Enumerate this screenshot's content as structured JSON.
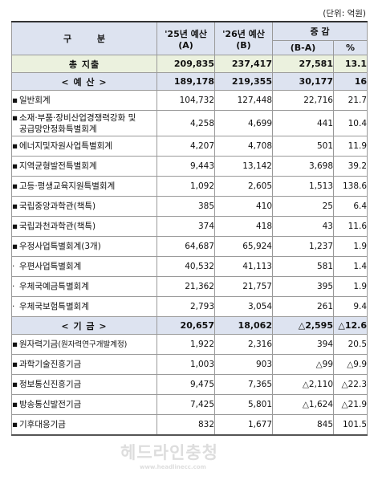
{
  "unit": "(단위: 억원)",
  "header": {
    "category": "구 분",
    "col_a_line1": "'25년 예산",
    "col_a_line2": "(A)",
    "col_b_line1": "'26년 예산",
    "col_b_line2": "(B)",
    "change": "증 감",
    "diff": "(B-A)",
    "pct": "%"
  },
  "total": {
    "label": "총 지출",
    "a": "209,835",
    "b": "237,417",
    "diff": "27,581",
    "pct": "13.1"
  },
  "budget_section": {
    "label": "< 예 산 >",
    "a": "189,178",
    "b": "219,355",
    "diff": "30,177",
    "pct": "16"
  },
  "budget_rows": [
    {
      "bullet": "▪",
      "label": "일반회계",
      "a": "104,732",
      "b": "127,448",
      "diff": "22,716",
      "pct": "21.7"
    },
    {
      "bullet": "▪",
      "label": "소재·부품·장비산업경쟁력강화 및",
      "label2": "공급망안정화특별회계",
      "a": "4,258",
      "b": "4,699",
      "diff": "441",
      "pct": "10.4"
    },
    {
      "bullet": "▪",
      "label": "에너지및자원사업특별회계",
      "a": "4,207",
      "b": "4,708",
      "diff": "501",
      "pct": "11.9"
    },
    {
      "bullet": "▪",
      "label": "지역균형발전특별회계",
      "a": "9,443",
      "b": "13,142",
      "diff": "3,698",
      "pct": "39.2"
    },
    {
      "bullet": "▪",
      "label": "고등·평생교육지원특별회계",
      "a": "1,092",
      "b": "2,605",
      "diff": "1,513",
      "pct": "138.6"
    },
    {
      "bullet": "▪",
      "label": "국립중앙과학관(책특)",
      "a": "385",
      "b": "410",
      "diff": "25",
      "pct": "6.4"
    },
    {
      "bullet": "▪",
      "label": "국립과천과학관(책특)",
      "a": "374",
      "b": "418",
      "diff": "43",
      "pct": "11.6"
    },
    {
      "bullet": "▪",
      "label": "우정사업특별회계(3개)",
      "a": "64,687",
      "b": "65,924",
      "diff": "1,237",
      "pct": "1.9"
    },
    {
      "bullet": "·",
      "label": "우편사업특별회계",
      "a": "40,532",
      "b": "41,113",
      "diff": "581",
      "pct": "1.4"
    },
    {
      "bullet": "·",
      "label": "우체국예금특별회계",
      "a": "21,362",
      "b": "21,757",
      "diff": "395",
      "pct": "1.9"
    },
    {
      "bullet": "·",
      "label": "우체국보험특별회계",
      "a": "2,793",
      "b": "3,054",
      "diff": "261",
      "pct": "9.4"
    }
  ],
  "fund_section": {
    "label": "< 기 금 >",
    "a": "20,657",
    "b": "18,062",
    "diff": "△2,595",
    "pct": "△12.6"
  },
  "fund_rows": [
    {
      "bullet": "▪",
      "label": "원자력기금",
      "label_small": "(원자력연구개발계정)",
      "a": "1,922",
      "b": "2,316",
      "diff": "394",
      "pct": "20.5"
    },
    {
      "bullet": "▪",
      "label": "과학기술진흥기금",
      "a": "1,003",
      "b": "903",
      "diff": "△99",
      "pct": "△9.9"
    },
    {
      "bullet": "▪",
      "label": "정보통신진흥기금",
      "a": "9,475",
      "b": "7,365",
      "diff": "△2,110",
      "pct": "△22.3"
    },
    {
      "bullet": "▪",
      "label": "방송통신발전기금",
      "a": "7,425",
      "b": "5,801",
      "diff": "△1,624",
      "pct": "△21.9"
    },
    {
      "bullet": "▪",
      "label": "기후대응기금",
      "a": "832",
      "b": "1,677",
      "diff": "845",
      "pct": "101.5"
    }
  ],
  "watermark": {
    "main": "헤드라인충청",
    "sub": "www.headlinecc.com"
  }
}
